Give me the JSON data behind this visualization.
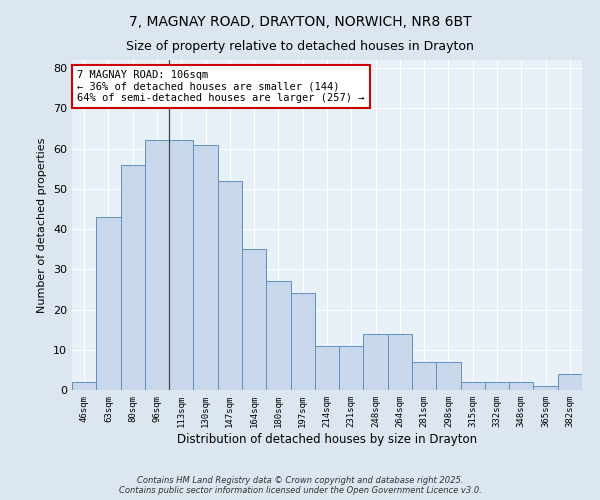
{
  "title1": "7, MAGNAY ROAD, DRAYTON, NORWICH, NR8 6BT",
  "title2": "Size of property relative to detached houses in Drayton",
  "xlabel": "Distribution of detached houses by size in Drayton",
  "ylabel": "Number of detached properties",
  "categories": [
    "46sqm",
    "63sqm",
    "80sqm",
    "96sqm",
    "113sqm",
    "130sqm",
    "147sqm",
    "164sqm",
    "180sqm",
    "197sqm",
    "214sqm",
    "231sqm",
    "248sqm",
    "264sqm",
    "281sqm",
    "298sqm",
    "315sqm",
    "332sqm",
    "348sqm",
    "365sqm",
    "382sqm"
  ],
  "values": [
    2,
    43,
    56,
    62,
    62,
    61,
    52,
    35,
    27,
    24,
    11,
    11,
    14,
    14,
    7,
    7,
    2,
    2,
    2,
    1,
    4
  ],
  "bar_color": "#c8d8ea",
  "bar_edge_color": "#6090c0",
  "annotation_text": "7 MAGNAY ROAD: 106sqm\n← 36% of detached houses are smaller (144)\n64% of semi-detached houses are larger (257) →",
  "annotation_box_color": "#ffffff",
  "annotation_box_edge": "#cc0000",
  "ylim": [
    0,
    82
  ],
  "yticks": [
    0,
    10,
    20,
    30,
    40,
    50,
    60,
    70,
    80
  ],
  "footer": "Contains HM Land Registry data © Crown copyright and database right 2025.\nContains public sector information licensed under the Open Government Licence v3.0.",
  "bg_color": "#dce6f0",
  "plot_bg_color": "#e8f0f8",
  "grid_color": "#ffffff",
  "title_fontsize": 10,
  "subtitle_fontsize": 9,
  "subject_bar_index": 3.5
}
